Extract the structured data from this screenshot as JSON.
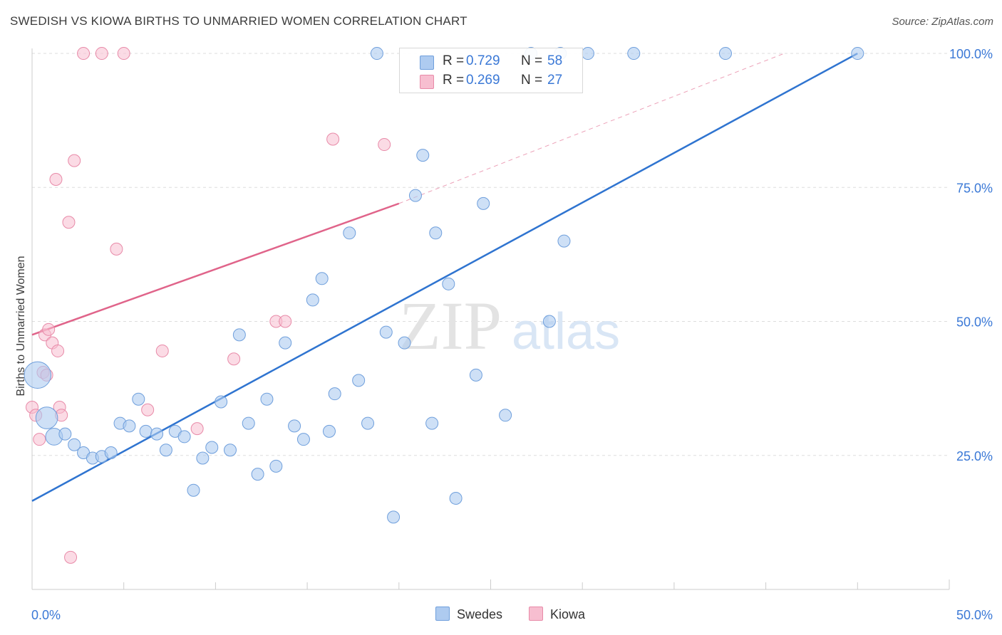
{
  "title": "SWEDISH VS KIOWA BIRTHS TO UNMARRIED WOMEN CORRELATION CHART",
  "source": "Source: ZipAtlas.com",
  "watermark": {
    "zip": "ZIP",
    "atlas": "atlas"
  },
  "legend_stats": {
    "r_label": "R =",
    "n_label": "N =",
    "swedes": {
      "r": "0.729",
      "n": "58"
    },
    "kiowa": {
      "r": "0.269",
      "n": "27"
    }
  },
  "colors": {
    "swedes_fill": "#aecbf0",
    "swedes_edge": "#6f9fdc",
    "swedes_line": "#2f74d0",
    "kiowa_fill": "#f7bed0",
    "kiowa_edge": "#e88aa8",
    "kiowa_line": "#e0648a",
    "tick_label": "#3a78d6",
    "grid": "#dddddd"
  },
  "chart_data": {
    "type": "scatter",
    "title": "SWEDISH VS KIOWA BIRTHS TO UNMARRIED WOMEN CORRELATION CHART",
    "xlabel": "",
    "ylabel": "Births to Unmarried Women",
    "xlim": [
      0,
      50
    ],
    "ylim": [
      0,
      102
    ],
    "x_tick_labels": [
      "0.0%",
      "50.0%"
    ],
    "y_ticks": [
      25,
      50,
      75,
      100
    ],
    "y_tick_labels": [
      "25.0%",
      "50.0%",
      "75.0%",
      "100.0%"
    ],
    "legend": [
      "Swedes",
      "Kiowa"
    ],
    "series": [
      {
        "name": "Swedes",
        "points": [
          [
            0.3,
            40,
            2.2
          ],
          [
            0.8,
            32,
            1.8
          ],
          [
            1.2,
            28.5,
            1.4
          ],
          [
            1.8,
            29,
            1
          ],
          [
            2.3,
            27,
            1
          ],
          [
            2.8,
            25.5,
            1
          ],
          [
            3.3,
            24.5,
            1
          ],
          [
            3.8,
            24.8,
            1
          ],
          [
            4.3,
            25.5,
            1
          ],
          [
            4.8,
            31,
            1
          ],
          [
            5.3,
            30.5,
            1
          ],
          [
            5.8,
            35.5,
            1
          ],
          [
            6.2,
            29.5,
            1
          ],
          [
            6.8,
            29,
            1
          ],
          [
            7.3,
            26,
            1
          ],
          [
            7.8,
            29.5,
            1
          ],
          [
            8.3,
            28.5,
            1
          ],
          [
            8.8,
            18.5,
            1
          ],
          [
            9.3,
            24.5,
            1
          ],
          [
            9.8,
            26.5,
            1
          ],
          [
            10.3,
            35,
            1
          ],
          [
            10.8,
            26,
            1
          ],
          [
            11.3,
            47.5,
            1
          ],
          [
            11.8,
            31,
            1
          ],
          [
            12.3,
            21.5,
            1
          ],
          [
            12.8,
            35.5,
            1
          ],
          [
            13.3,
            23,
            1
          ],
          [
            13.8,
            46,
            1
          ],
          [
            14.3,
            30.5,
            1
          ],
          [
            14.8,
            28,
            1
          ],
          [
            15.3,
            54,
            1
          ],
          [
            15.8,
            58,
            1
          ],
          [
            16.2,
            29.5,
            1
          ],
          [
            16.5,
            36.5,
            1
          ],
          [
            17.3,
            66.5,
            1
          ],
          [
            17.8,
            39,
            1
          ],
          [
            18.3,
            31,
            1
          ],
          [
            18.8,
            100,
            1
          ],
          [
            19.3,
            48,
            1
          ],
          [
            19.7,
            13.5,
            1
          ],
          [
            20.3,
            46,
            1
          ],
          [
            20.9,
            73.5,
            1
          ],
          [
            21.3,
            81,
            1
          ],
          [
            21.8,
            31,
            1
          ],
          [
            22.0,
            66.5,
            1
          ],
          [
            22.7,
            57,
            1
          ],
          [
            23.1,
            17,
            1
          ],
          [
            24.2,
            40,
            1
          ],
          [
            24.6,
            72,
            1
          ],
          [
            25.8,
            32.5,
            1
          ],
          [
            27.2,
            100,
            1
          ],
          [
            28.2,
            50,
            1
          ],
          [
            28.8,
            100,
            1
          ],
          [
            29.0,
            65,
            1
          ],
          [
            30.3,
            100,
            1
          ],
          [
            32.8,
            100,
            1
          ],
          [
            37.8,
            100,
            1
          ],
          [
            45.0,
            100,
            1
          ]
        ],
        "trend": {
          "x": [
            0,
            45.0
          ],
          "y": [
            16.5,
            100
          ]
        }
      },
      {
        "name": "Kiowa",
        "points": [
          [
            0.0,
            34,
            1
          ],
          [
            0.2,
            32.5,
            1
          ],
          [
            0.4,
            28,
            1
          ],
          [
            0.6,
            40.5,
            1
          ],
          [
            0.7,
            47.5,
            1
          ],
          [
            0.8,
            40,
            1
          ],
          [
            0.9,
            48.5,
            1
          ],
          [
            1.1,
            46,
            1
          ],
          [
            1.3,
            76.5,
            1
          ],
          [
            1.4,
            44.5,
            1
          ],
          [
            1.5,
            34,
            1
          ],
          [
            1.6,
            32.5,
            1
          ],
          [
            2.0,
            68.5,
            1
          ],
          [
            2.1,
            6,
            1
          ],
          [
            2.3,
            80,
            1
          ],
          [
            2.8,
            100,
            1
          ],
          [
            3.8,
            100,
            1
          ],
          [
            4.6,
            63.5,
            1
          ],
          [
            5.0,
            100,
            1
          ],
          [
            6.3,
            33.5,
            1
          ],
          [
            7.1,
            44.5,
            1
          ],
          [
            9.0,
            30,
            1
          ],
          [
            11.0,
            43,
            1
          ],
          [
            13.3,
            50,
            1
          ],
          [
            13.8,
            50,
            1
          ],
          [
            16.4,
            84,
            1
          ],
          [
            19.2,
            83,
            1
          ]
        ],
        "trend": {
          "x": [
            0,
            20.0
          ],
          "y": [
            47.5,
            72
          ]
        },
        "trend_extension": {
          "x": [
            20.0,
            41.0
          ],
          "y": [
            72,
            100
          ]
        }
      }
    ]
  }
}
